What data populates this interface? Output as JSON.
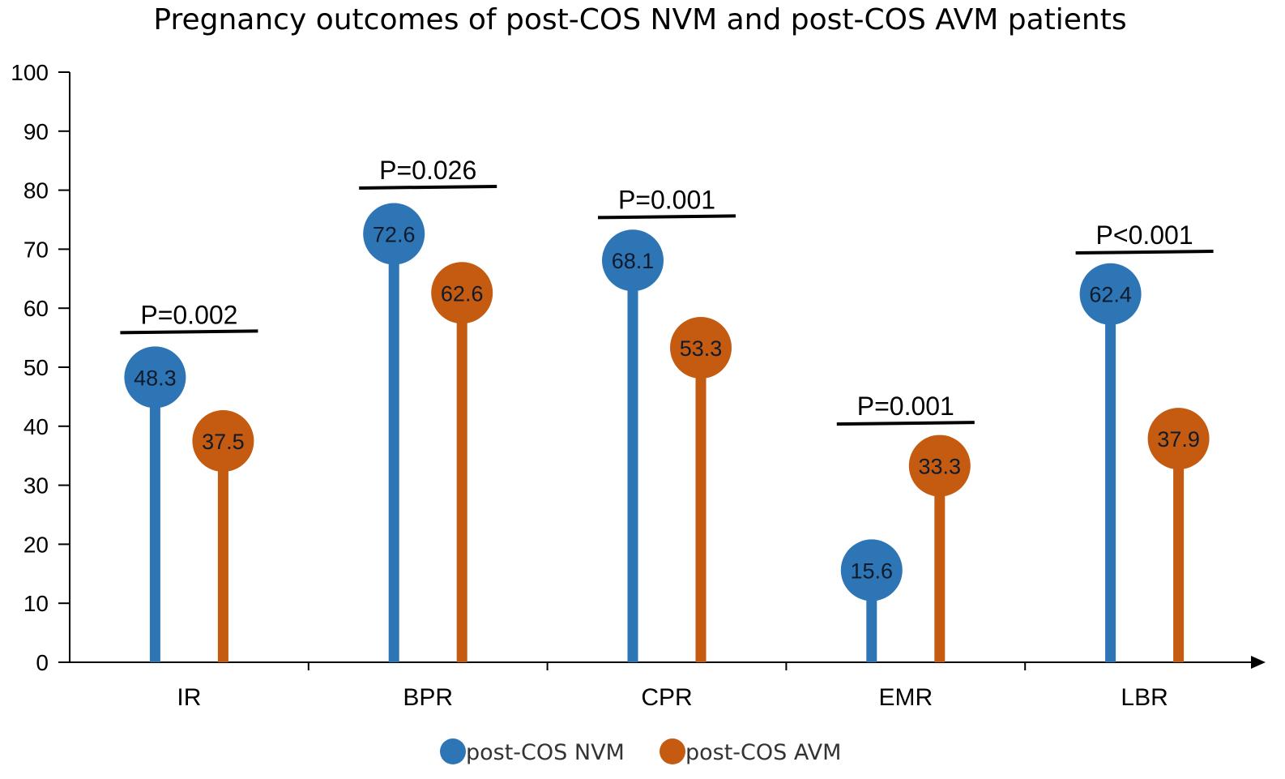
{
  "chart_data": {
    "type": "lollipop",
    "title": "Pregnancy outcomes of post-COS NVM and post-COS AVM patients",
    "xlabel": "",
    "ylabel": "",
    "ylim": [
      0,
      100
    ],
    "yticks": [
      "0",
      "10",
      "20",
      "30",
      "40",
      "50",
      "60",
      "70",
      "80",
      "90",
      "100"
    ],
    "categories": [
      "IR",
      "BPR",
      "CPR",
      "EMR",
      "LBR"
    ],
    "series": [
      {
        "name": "post-COS NVM",
        "color": "#2E75B6",
        "values": [
          48.3,
          72.6,
          68.1,
          15.6,
          62.4
        ],
        "labels": [
          "48.3",
          "72.6",
          "68.1",
          "15.6",
          "62.4"
        ]
      },
      {
        "name": "post-COS AVM",
        "color": "#C55A11",
        "values": [
          37.5,
          62.6,
          53.3,
          33.3,
          37.9
        ],
        "labels": [
          "37.5",
          "62.6",
          "53.3",
          "33.3",
          "37.9"
        ]
      }
    ],
    "annotations": [
      {
        "category": "IR",
        "text": "P=0.002",
        "value": 56
      },
      {
        "category": "BPR",
        "text": "P=0.026",
        "value": 80.5
      },
      {
        "category": "CPR",
        "text": "P=0.001",
        "value": 75.5
      },
      {
        "category": "EMR",
        "text": "P=0.001",
        "value": 40.5
      },
      {
        "category": "LBR",
        "text": "P<0.001",
        "value": 69.5
      }
    ],
    "legend_position": "bottom-center"
  }
}
